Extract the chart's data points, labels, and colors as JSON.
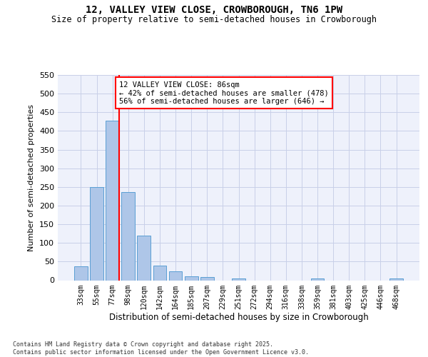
{
  "title1": "12, VALLEY VIEW CLOSE, CROWBOROUGH, TN6 1PW",
  "title2": "Size of property relative to semi-detached houses in Crowborough",
  "xlabel": "Distribution of semi-detached houses by size in Crowborough",
  "ylabel": "Number of semi-detached properties",
  "bin_labels": [
    "33sqm",
    "55sqm",
    "77sqm",
    "98sqm",
    "120sqm",
    "142sqm",
    "164sqm",
    "185sqm",
    "207sqm",
    "229sqm",
    "251sqm",
    "272sqm",
    "294sqm",
    "316sqm",
    "338sqm",
    "359sqm",
    "381sqm",
    "403sqm",
    "425sqm",
    "446sqm",
    "468sqm"
  ],
  "bar_values": [
    38,
    250,
    428,
    237,
    119,
    40,
    24,
    10,
    8,
    0,
    4,
    0,
    0,
    0,
    0,
    4,
    0,
    0,
    0,
    0,
    4
  ],
  "bar_color": "#aec6e8",
  "bar_edge_color": "#5a9fd4",
  "property_sqm": 86,
  "pct_smaller": 42,
  "n_smaller": 478,
  "pct_larger": 56,
  "n_larger": 646,
  "annotation_line1": "12 VALLEY VIEW CLOSE: 86sqm",
  "annotation_line2": "← 42% of semi-detached houses are smaller (478)",
  "annotation_line3": "56% of semi-detached houses are larger (646) →",
  "ylim": [
    0,
    550
  ],
  "yticks": [
    0,
    50,
    100,
    150,
    200,
    250,
    300,
    350,
    400,
    450,
    500,
    550
  ],
  "footer": "Contains HM Land Registry data © Crown copyright and database right 2025.\nContains public sector information licensed under the Open Government Licence v3.0.",
  "bg_color": "#eef1fb",
  "grid_color": "#c8cfe8"
}
